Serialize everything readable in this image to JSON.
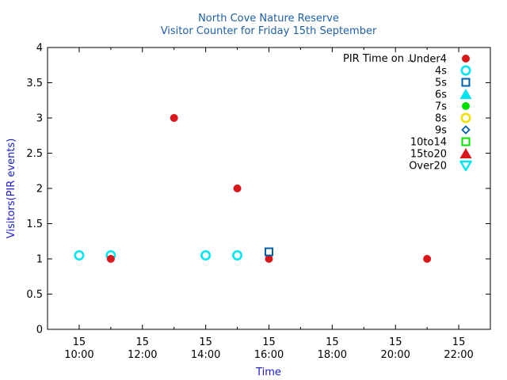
{
  "chart_data": {
    "type": "scatter",
    "title": "North Cove Nature Reserve",
    "subtitle": "Visitor Counter for Friday 15th September",
    "xlabel": "Time",
    "ylabel": "Visitors(PIR events)",
    "xlim": [
      "09:00",
      "23:00"
    ],
    "ylim": [
      0,
      4
    ],
    "x_ticks": [
      {
        "day": "15",
        "time": "10:00"
      },
      {
        "day": "15",
        "time": "12:00"
      },
      {
        "day": "15",
        "time": "14:00"
      },
      {
        "day": "15",
        "time": "16:00"
      },
      {
        "day": "15",
        "time": "18:00"
      },
      {
        "day": "15",
        "time": "20:00"
      },
      {
        "day": "15",
        "time": "22:00"
      }
    ],
    "y_ticks": [
      "0",
      "0.5",
      "1",
      "1.5",
      "2",
      "2.5",
      "3",
      "3.5",
      "4"
    ],
    "legend_title": "PIR Time on ..",
    "legend_position": "top-right",
    "grid": false,
    "series": [
      {
        "name": "Under4",
        "marker": "filled-circle",
        "color": "#d7191c",
        "points": [
          {
            "x": "11:00",
            "y": 1
          },
          {
            "x": "13:00",
            "y": 3
          },
          {
            "x": "15:00",
            "y": 2
          },
          {
            "x": "16:00",
            "y": 1
          },
          {
            "x": "21:00",
            "y": 1
          }
        ]
      },
      {
        "name": "4s",
        "marker": "open-circle",
        "color": "#00e5ee",
        "points": [
          {
            "x": "10:00",
            "y": 1.05
          },
          {
            "x": "11:00",
            "y": 1.05
          },
          {
            "x": "14:00",
            "y": 1.05
          },
          {
            "x": "15:00",
            "y": 1.05
          }
        ]
      },
      {
        "name": "5s",
        "marker": "open-square",
        "color": "#0060ad",
        "points": [
          {
            "x": "16:00",
            "y": 1.1
          }
        ]
      },
      {
        "name": "6s",
        "marker": "filled-triangle",
        "color": "#00e5ee",
        "points": []
      },
      {
        "name": "7s",
        "marker": "filled-circle",
        "color": "#00e000",
        "points": []
      },
      {
        "name": "8s",
        "marker": "open-circle",
        "color": "#f0e000",
        "points": []
      },
      {
        "name": "9s",
        "marker": "open-diamond",
        "color": "#0060ad",
        "points": []
      },
      {
        "name": "10to14",
        "marker": "open-square",
        "color": "#00e000",
        "points": []
      },
      {
        "name": "15to20",
        "marker": "filled-triangle",
        "color": "#d7191c",
        "points": []
      },
      {
        "name": "Over20",
        "marker": "open-triangle-down",
        "color": "#00e5ee",
        "points": []
      }
    ]
  }
}
